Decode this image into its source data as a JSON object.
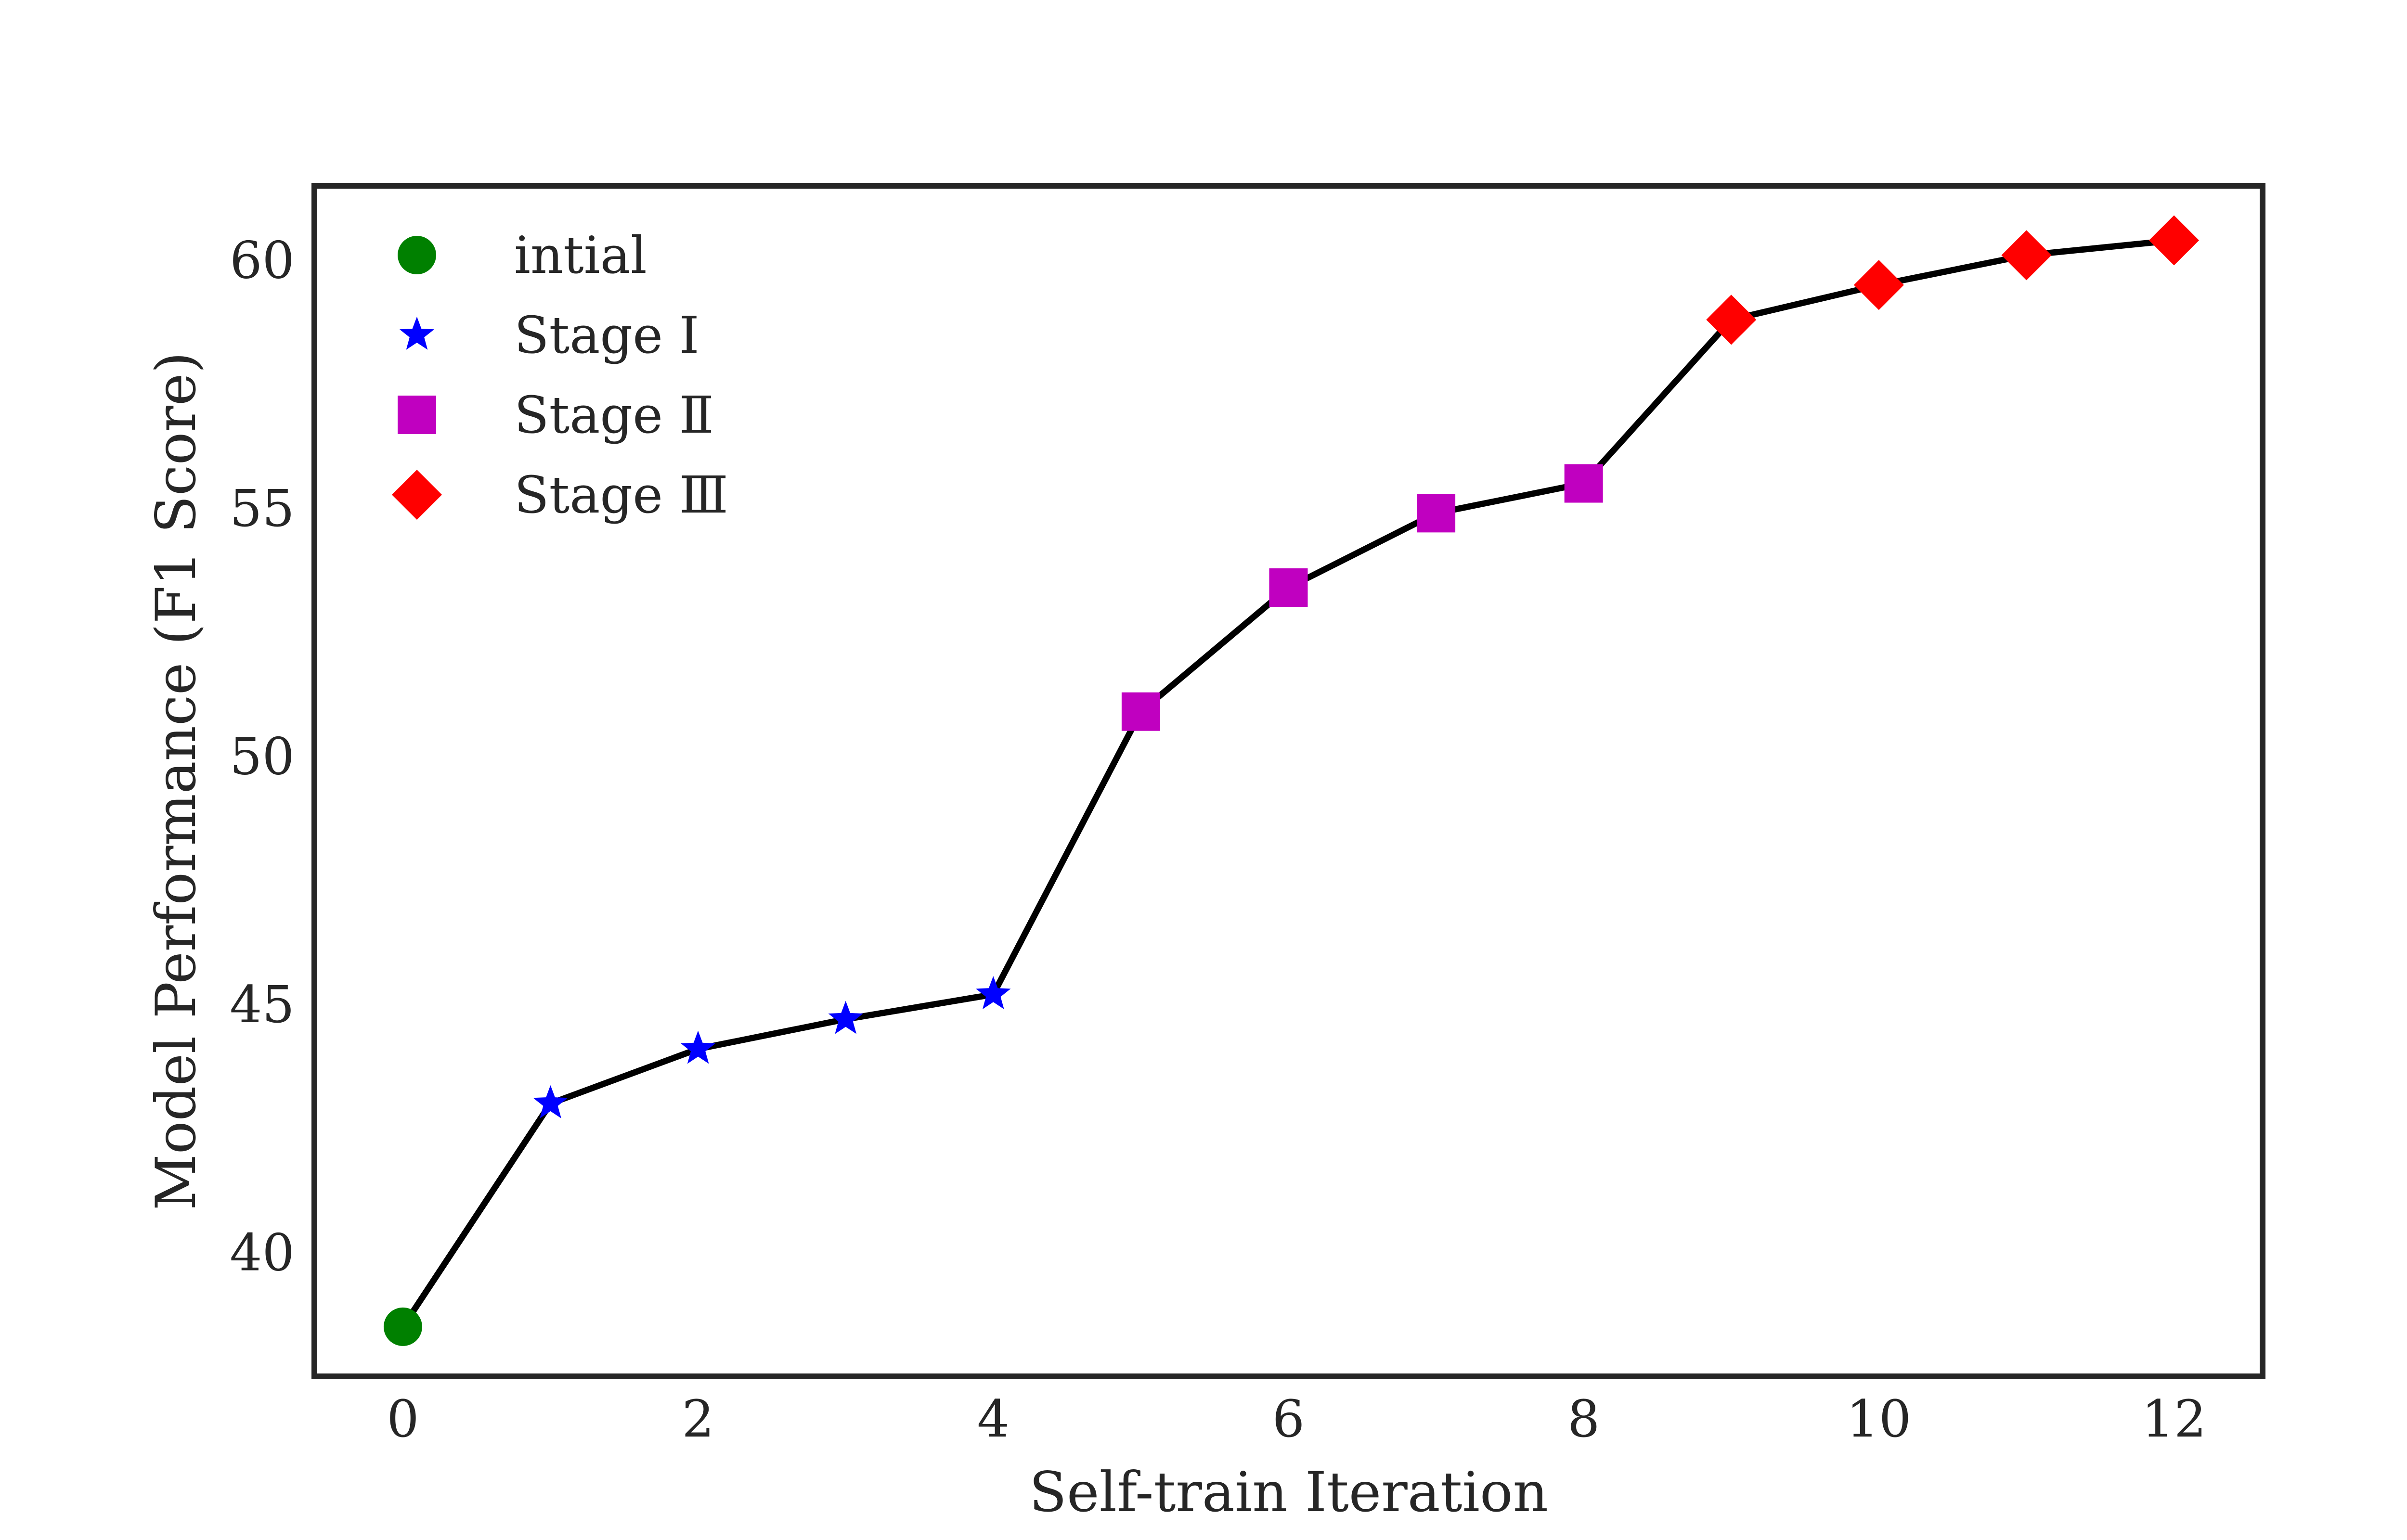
{
  "chart_data": {
    "type": "line",
    "title": "",
    "xlabel": "Self-train Iteration",
    "ylabel": "Model Performance (F1 Score)",
    "xlim": [
      -0.6,
      12.6
    ],
    "ylim": [
      37.5,
      61.5
    ],
    "xticks": [
      0,
      2,
      4,
      6,
      8,
      10,
      12
    ],
    "yticks": [
      40,
      45,
      50,
      55,
      60
    ],
    "line_color": "#000000",
    "legend_position": "top-left",
    "x": [
      0,
      1,
      2,
      3,
      4,
      5,
      6,
      7,
      8,
      9,
      10,
      11,
      12
    ],
    "y": [
      38.5,
      43.0,
      44.1,
      44.7,
      45.2,
      50.9,
      53.4,
      54.9,
      55.5,
      58.8,
      59.5,
      60.1,
      60.4
    ],
    "series": [
      {
        "name": "intial",
        "marker": "circle",
        "color": "#008000",
        "x": [
          0
        ],
        "y": [
          38.5
        ]
      },
      {
        "name": "Stage Ⅰ",
        "marker": "star",
        "color": "#0000ff",
        "x": [
          1,
          2,
          3,
          4
        ],
        "y": [
          43.0,
          44.1,
          44.7,
          45.2
        ]
      },
      {
        "name": "Stage Ⅱ",
        "marker": "square",
        "color": "#c000c0",
        "x": [
          5,
          6,
          7,
          8
        ],
        "y": [
          50.9,
          53.4,
          54.9,
          55.5
        ]
      },
      {
        "name": "Stage Ⅲ",
        "marker": "diamond",
        "color": "#ff0000",
        "x": [
          9,
          10,
          11,
          12
        ],
        "y": [
          58.8,
          59.5,
          60.1,
          60.4
        ]
      }
    ]
  }
}
